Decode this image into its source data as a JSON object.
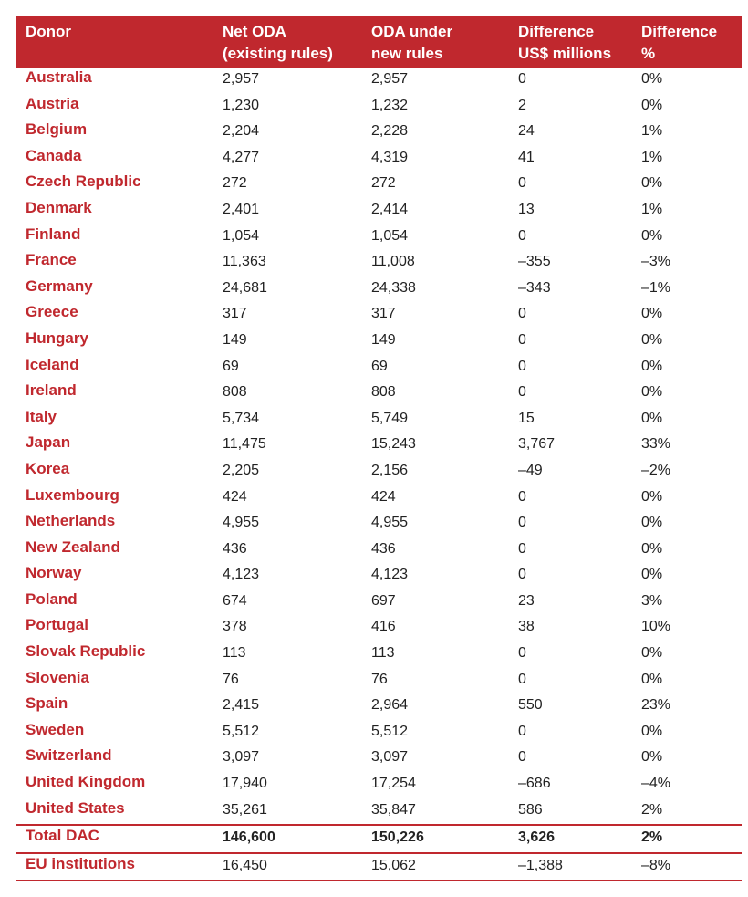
{
  "table": {
    "headers": [
      "Donor",
      "Net ODA\n(existing rules)",
      "ODA under\nnew rules",
      "Difference\nUS$ millions",
      "Difference\n%"
    ],
    "rows": [
      [
        "Australia",
        "2,957",
        "2,957",
        "0",
        "0%"
      ],
      [
        "Austria",
        "1,230",
        "1,232",
        "2",
        "0%"
      ],
      [
        "Belgium",
        "2,204",
        "2,228",
        "24",
        "1%"
      ],
      [
        "Canada",
        "4,277",
        "4,319",
        "41",
        "1%"
      ],
      [
        "Czech Republic",
        "272",
        "272",
        "0",
        "0%"
      ],
      [
        "Denmark",
        "2,401",
        "2,414",
        "13",
        "1%"
      ],
      [
        "Finland",
        "1,054",
        "1,054",
        "0",
        "0%"
      ],
      [
        "France",
        "11,363",
        "11,008",
        "–355",
        "–3%"
      ],
      [
        "Germany",
        "24,681",
        "24,338",
        "–343",
        "–1%"
      ],
      [
        "Greece",
        "317",
        "317",
        "0",
        "0%"
      ],
      [
        "Hungary",
        "149",
        "149",
        "0",
        "0%"
      ],
      [
        "Iceland",
        "69",
        "69",
        "0",
        "0%"
      ],
      [
        "Ireland",
        "808",
        "808",
        "0",
        "0%"
      ],
      [
        "Italy",
        "5,734",
        "5,749",
        "15",
        "0%"
      ],
      [
        "Japan",
        "11,475",
        "15,243",
        "3,767",
        "33%"
      ],
      [
        "Korea",
        "2,205",
        "2,156",
        "–49",
        "–2%"
      ],
      [
        "Luxembourg",
        "424",
        "424",
        "0",
        "0%"
      ],
      [
        "Netherlands",
        "4,955",
        "4,955",
        "0",
        "0%"
      ],
      [
        "New Zealand",
        "436",
        "436",
        "0",
        "0%"
      ],
      [
        "Norway",
        "4,123",
        "4,123",
        "0",
        "0%"
      ],
      [
        "Poland",
        "674",
        "697",
        "23",
        "3%"
      ],
      [
        "Portugal",
        "378",
        "416",
        "38",
        "10%"
      ],
      [
        "Slovak Republic",
        "113",
        "113",
        "0",
        "0%"
      ],
      [
        "Slovenia",
        "76",
        "76",
        "0",
        "0%"
      ],
      [
        "Spain",
        "2,415",
        "2,964",
        "550",
        "23%"
      ],
      [
        "Sweden",
        "5,512",
        "5,512",
        "0",
        "0%"
      ],
      [
        "Switzerland",
        "3,097",
        "3,097",
        "0",
        "0%"
      ],
      [
        "United Kingdom",
        "17,940",
        "17,254",
        "–686",
        "–4%"
      ],
      [
        "United States",
        "35,261",
        "35,847",
        "586",
        "2%"
      ]
    ],
    "total": [
      "Total DAC",
      "146,600",
      "150,226",
      "3,626",
      "2%"
    ],
    "eu": [
      "EU institutions",
      "16,450",
      "15,062",
      "–1,388",
      "–8%"
    ]
  },
  "colors": {
    "accent": "#c0282e",
    "text": "#222222",
    "header_text": "#ffffff"
  }
}
